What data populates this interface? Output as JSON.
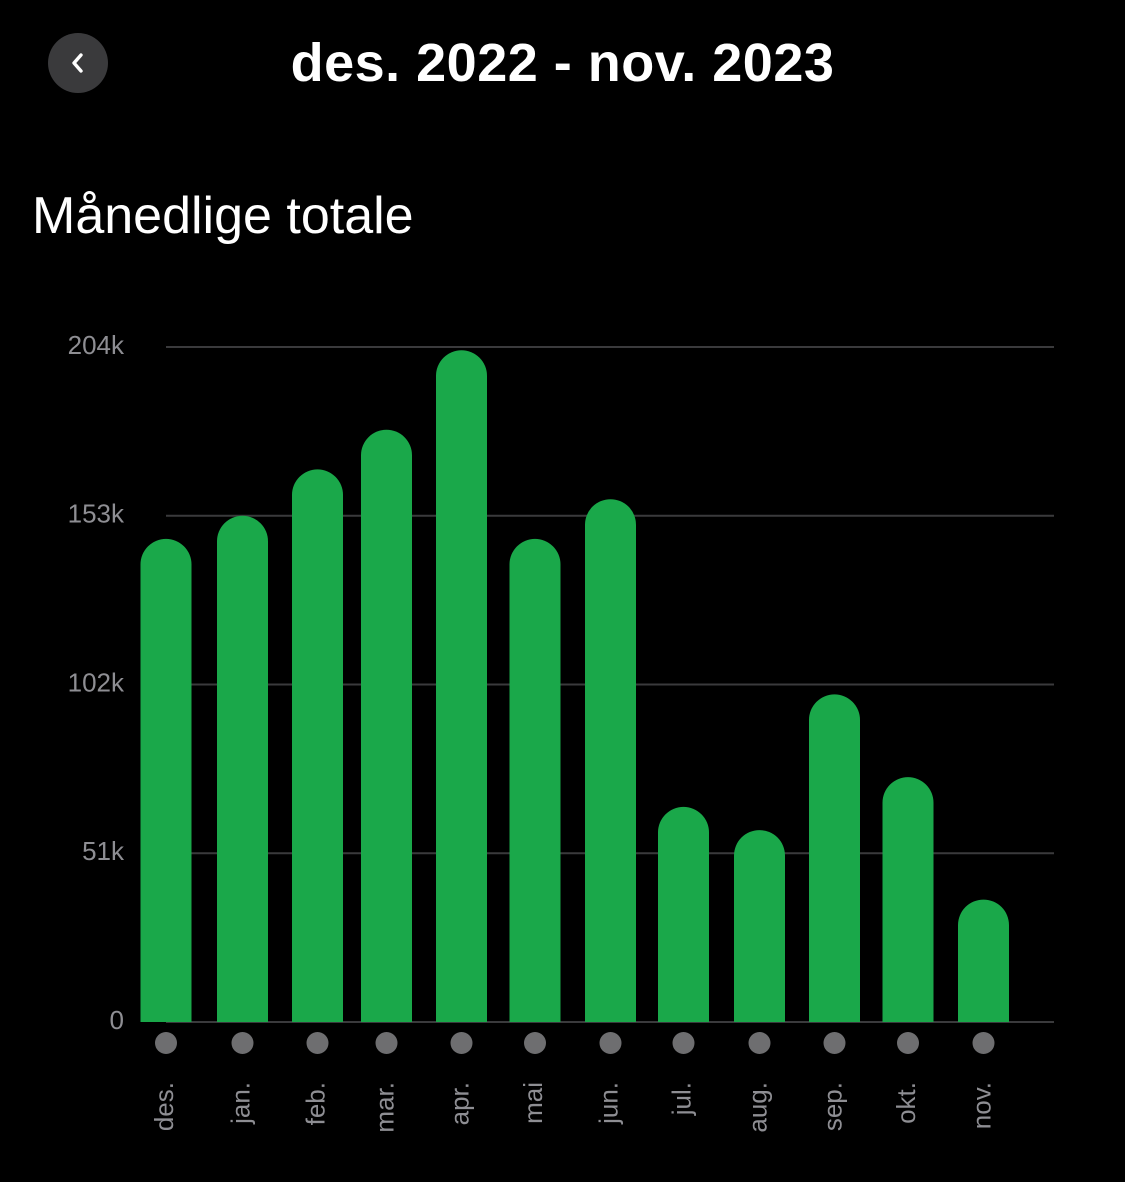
{
  "header": {
    "title": "des. 2022 - nov. 2023",
    "back_icon": "chevron-left-icon"
  },
  "section": {
    "title": "Månedlige totale"
  },
  "colors": {
    "bar": "#1aa84a",
    "grid": "#3a3a3c",
    "axis_text": "#8e8e93",
    "dot": "#6e6e70",
    "button_bg": "#3a3a3c"
  },
  "chart_data": {
    "type": "bar",
    "title": "",
    "xlabel": "",
    "ylabel": "",
    "categories": [
      "des.",
      "jan.",
      "feb.",
      "mar.",
      "apr.",
      "mai",
      "jun.",
      "jul.",
      "aug.",
      "sep.",
      "okt.",
      "nov."
    ],
    "values": [
      146000,
      153000,
      167000,
      179000,
      203000,
      146000,
      158000,
      65000,
      58000,
      99000,
      74000,
      37000
    ],
    "yticks": [
      {
        "value": 0,
        "label": "0"
      },
      {
        "value": 51000,
        "label": "51k"
      },
      {
        "value": 102000,
        "label": "102k"
      },
      {
        "value": 153000,
        "label": "153k"
      },
      {
        "value": 204000,
        "label": "204k"
      }
    ],
    "ylim": [
      0,
      204000
    ],
    "grid": true,
    "bar_style": "rounded-top"
  }
}
